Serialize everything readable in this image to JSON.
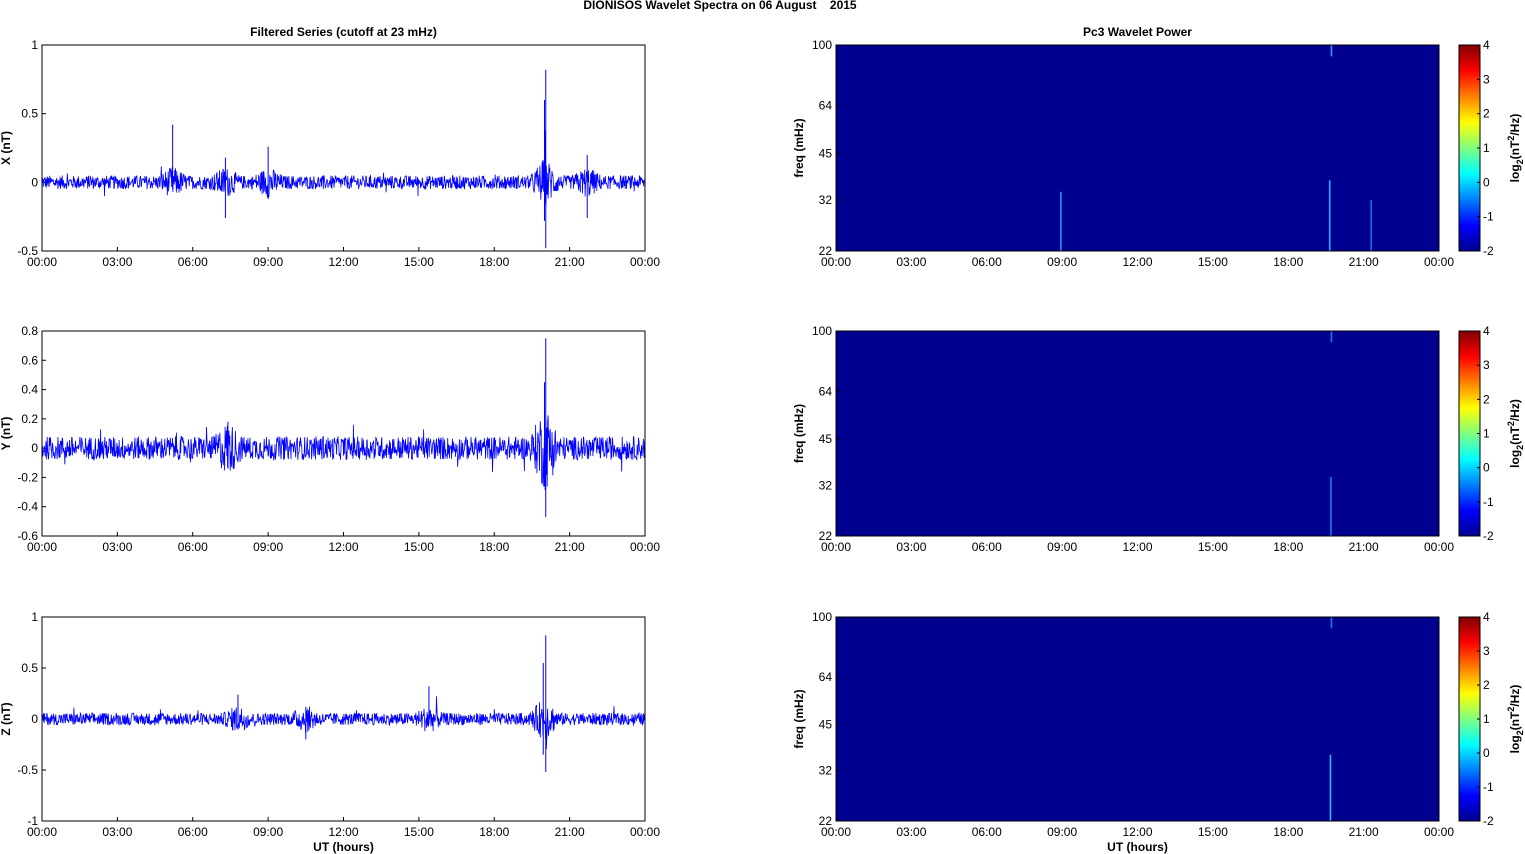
{
  "figure": {
    "title": "DIONISOS Wavelet Spectra on 06 August    2015"
  },
  "chart_data": [
    {
      "type": "line",
      "title": "Filtered Series (cutoff at 23 mHz)",
      "ylabel": "X (nT)",
      "xlabel": "",
      "xticklabels": [
        "00:00",
        "03:00",
        "06:00",
        "09:00",
        "12:00",
        "15:00",
        "18:00",
        "21:00",
        "00:00"
      ],
      "xlim_hours": [
        0,
        24
      ],
      "ylim": [
        -0.5,
        1
      ],
      "yticks": [
        -0.5,
        0,
        0.5,
        1
      ],
      "yticklabels": [
        "-0.5",
        "0",
        "0.5",
        "1"
      ],
      "series": [
        {
          "color": "#0000ff",
          "noise_amplitude": 0.05,
          "spikes": [
            [
              5.2,
              0.42,
              -0.05
            ],
            [
              7.3,
              0.18,
              -0.26
            ],
            [
              9.0,
              0.26,
              -0.12
            ],
            [
              20.0,
              0.6,
              -0.28
            ],
            [
              20.05,
              0.82,
              -0.48
            ],
            [
              21.7,
              0.2,
              -0.26
            ]
          ]
        }
      ]
    },
    {
      "type": "line",
      "ylabel": "Y (nT)",
      "xlabel": "",
      "xticklabels": [
        "00:00",
        "03:00",
        "06:00",
        "09:00",
        "12:00",
        "15:00",
        "18:00",
        "21:00",
        "00:00"
      ],
      "xlim_hours": [
        0,
        24
      ],
      "ylim": [
        -0.6,
        0.8
      ],
      "yticks": [
        -0.6,
        -0.4,
        -0.2,
        0,
        0.2,
        0.4,
        0.6,
        0.8
      ],
      "yticklabels": [
        "-0.6",
        "-0.4",
        "-0.2",
        "0",
        "0.2",
        "0.4",
        "0.6",
        "0.8"
      ],
      "series": [
        {
          "color": "#0000ff",
          "noise_amplitude": 0.08,
          "spikes": [
            [
              7.4,
              0.18,
              -0.14
            ],
            [
              20.0,
              0.45,
              -0.26
            ],
            [
              20.05,
              0.75,
              -0.47
            ]
          ]
        }
      ]
    },
    {
      "type": "line",
      "ylabel": "Z (nT)",
      "xlabel": "UT (hours)",
      "xticklabels": [
        "00:00",
        "03:00",
        "06:00",
        "09:00",
        "12:00",
        "15:00",
        "18:00",
        "21:00",
        "00:00"
      ],
      "xlim_hours": [
        0,
        24
      ],
      "ylim": [
        -1,
        1
      ],
      "yticks": [
        -1,
        -0.5,
        0,
        0.5,
        1
      ],
      "yticklabels": [
        "-1",
        "-0.5",
        "0",
        "0.5",
        "1"
      ],
      "series": [
        {
          "color": "#0000ff",
          "noise_amplitude": 0.06,
          "spikes": [
            [
              7.8,
              0.24,
              -0.05
            ],
            [
              10.5,
              0.12,
              -0.2
            ],
            [
              15.4,
              0.32,
              -0.05
            ],
            [
              19.95,
              0.55,
              -0.35
            ],
            [
              20.05,
              0.82,
              -0.52
            ]
          ]
        }
      ]
    },
    {
      "type": "heatmap",
      "title": "Pc3 Wavelet Power",
      "ylabel": "freq (mHz)",
      "xlabel": "",
      "xticklabels": [
        "00:00",
        "03:00",
        "06:00",
        "09:00",
        "12:00",
        "15:00",
        "18:00",
        "21:00",
        "00:00"
      ],
      "yticklabels": [
        "22",
        "32",
        "45",
        "64",
        "100"
      ],
      "ylim_mHz": [
        22,
        100
      ],
      "y_scale": "log",
      "background_color": "#00008f",
      "features": [
        [
          8.95,
          22,
          34,
          "#2a8cff"
        ],
        [
          19.65,
          22,
          37,
          "#30a8ff"
        ],
        [
          19.72,
          92,
          100,
          "#3a90ff"
        ],
        [
          21.3,
          22,
          32,
          "#2468ee"
        ]
      ],
      "colorbar": {
        "label": "log2(nT2/Hz)",
        "ticks": [
          "4",
          "3",
          "2",
          "1",
          "0",
          "-1",
          "-2"
        ],
        "range": [
          -2,
          4
        ]
      }
    },
    {
      "type": "heatmap",
      "ylabel": "freq (mHz)",
      "xlabel": "",
      "xticklabels": [
        "00:00",
        "03:00",
        "06:00",
        "09:00",
        "12:00",
        "15:00",
        "18:00",
        "21:00",
        "00:00"
      ],
      "yticklabels": [
        "22",
        "32",
        "45",
        "64",
        "100"
      ],
      "ylim_mHz": [
        22,
        100
      ],
      "y_scale": "log",
      "background_color": "#00008f",
      "features": [
        [
          19.7,
          22,
          34,
          "#2078f0"
        ],
        [
          19.72,
          92,
          100,
          "#2a70e8"
        ]
      ],
      "colorbar": {
        "label": "log2(nT2/Hz)",
        "ticks": [
          "4",
          "3",
          "2",
          "1",
          "0",
          "-1",
          "-2"
        ],
        "range": [
          -2,
          4
        ]
      }
    },
    {
      "type": "heatmap",
      "ylabel": "freq (mHz)",
      "xlabel": "UT (hours)",
      "xticklabels": [
        "00:00",
        "03:00",
        "06:00",
        "09:00",
        "12:00",
        "15:00",
        "18:00",
        "21:00",
        "00:00"
      ],
      "yticklabels": [
        "22",
        "32",
        "45",
        "64",
        "100"
      ],
      "ylim_mHz": [
        22,
        100
      ],
      "y_scale": "log",
      "background_color": "#00008f",
      "features": [
        [
          19.68,
          22,
          36,
          "#38b0ff"
        ],
        [
          19.72,
          92,
          100,
          "#2a70e8"
        ]
      ],
      "colorbar": {
        "label": "log2(nT2/Hz)",
        "ticks": [
          "4",
          "3",
          "2",
          "1",
          "0",
          "-1",
          "-2"
        ],
        "range": [
          -2,
          4
        ]
      }
    }
  ]
}
